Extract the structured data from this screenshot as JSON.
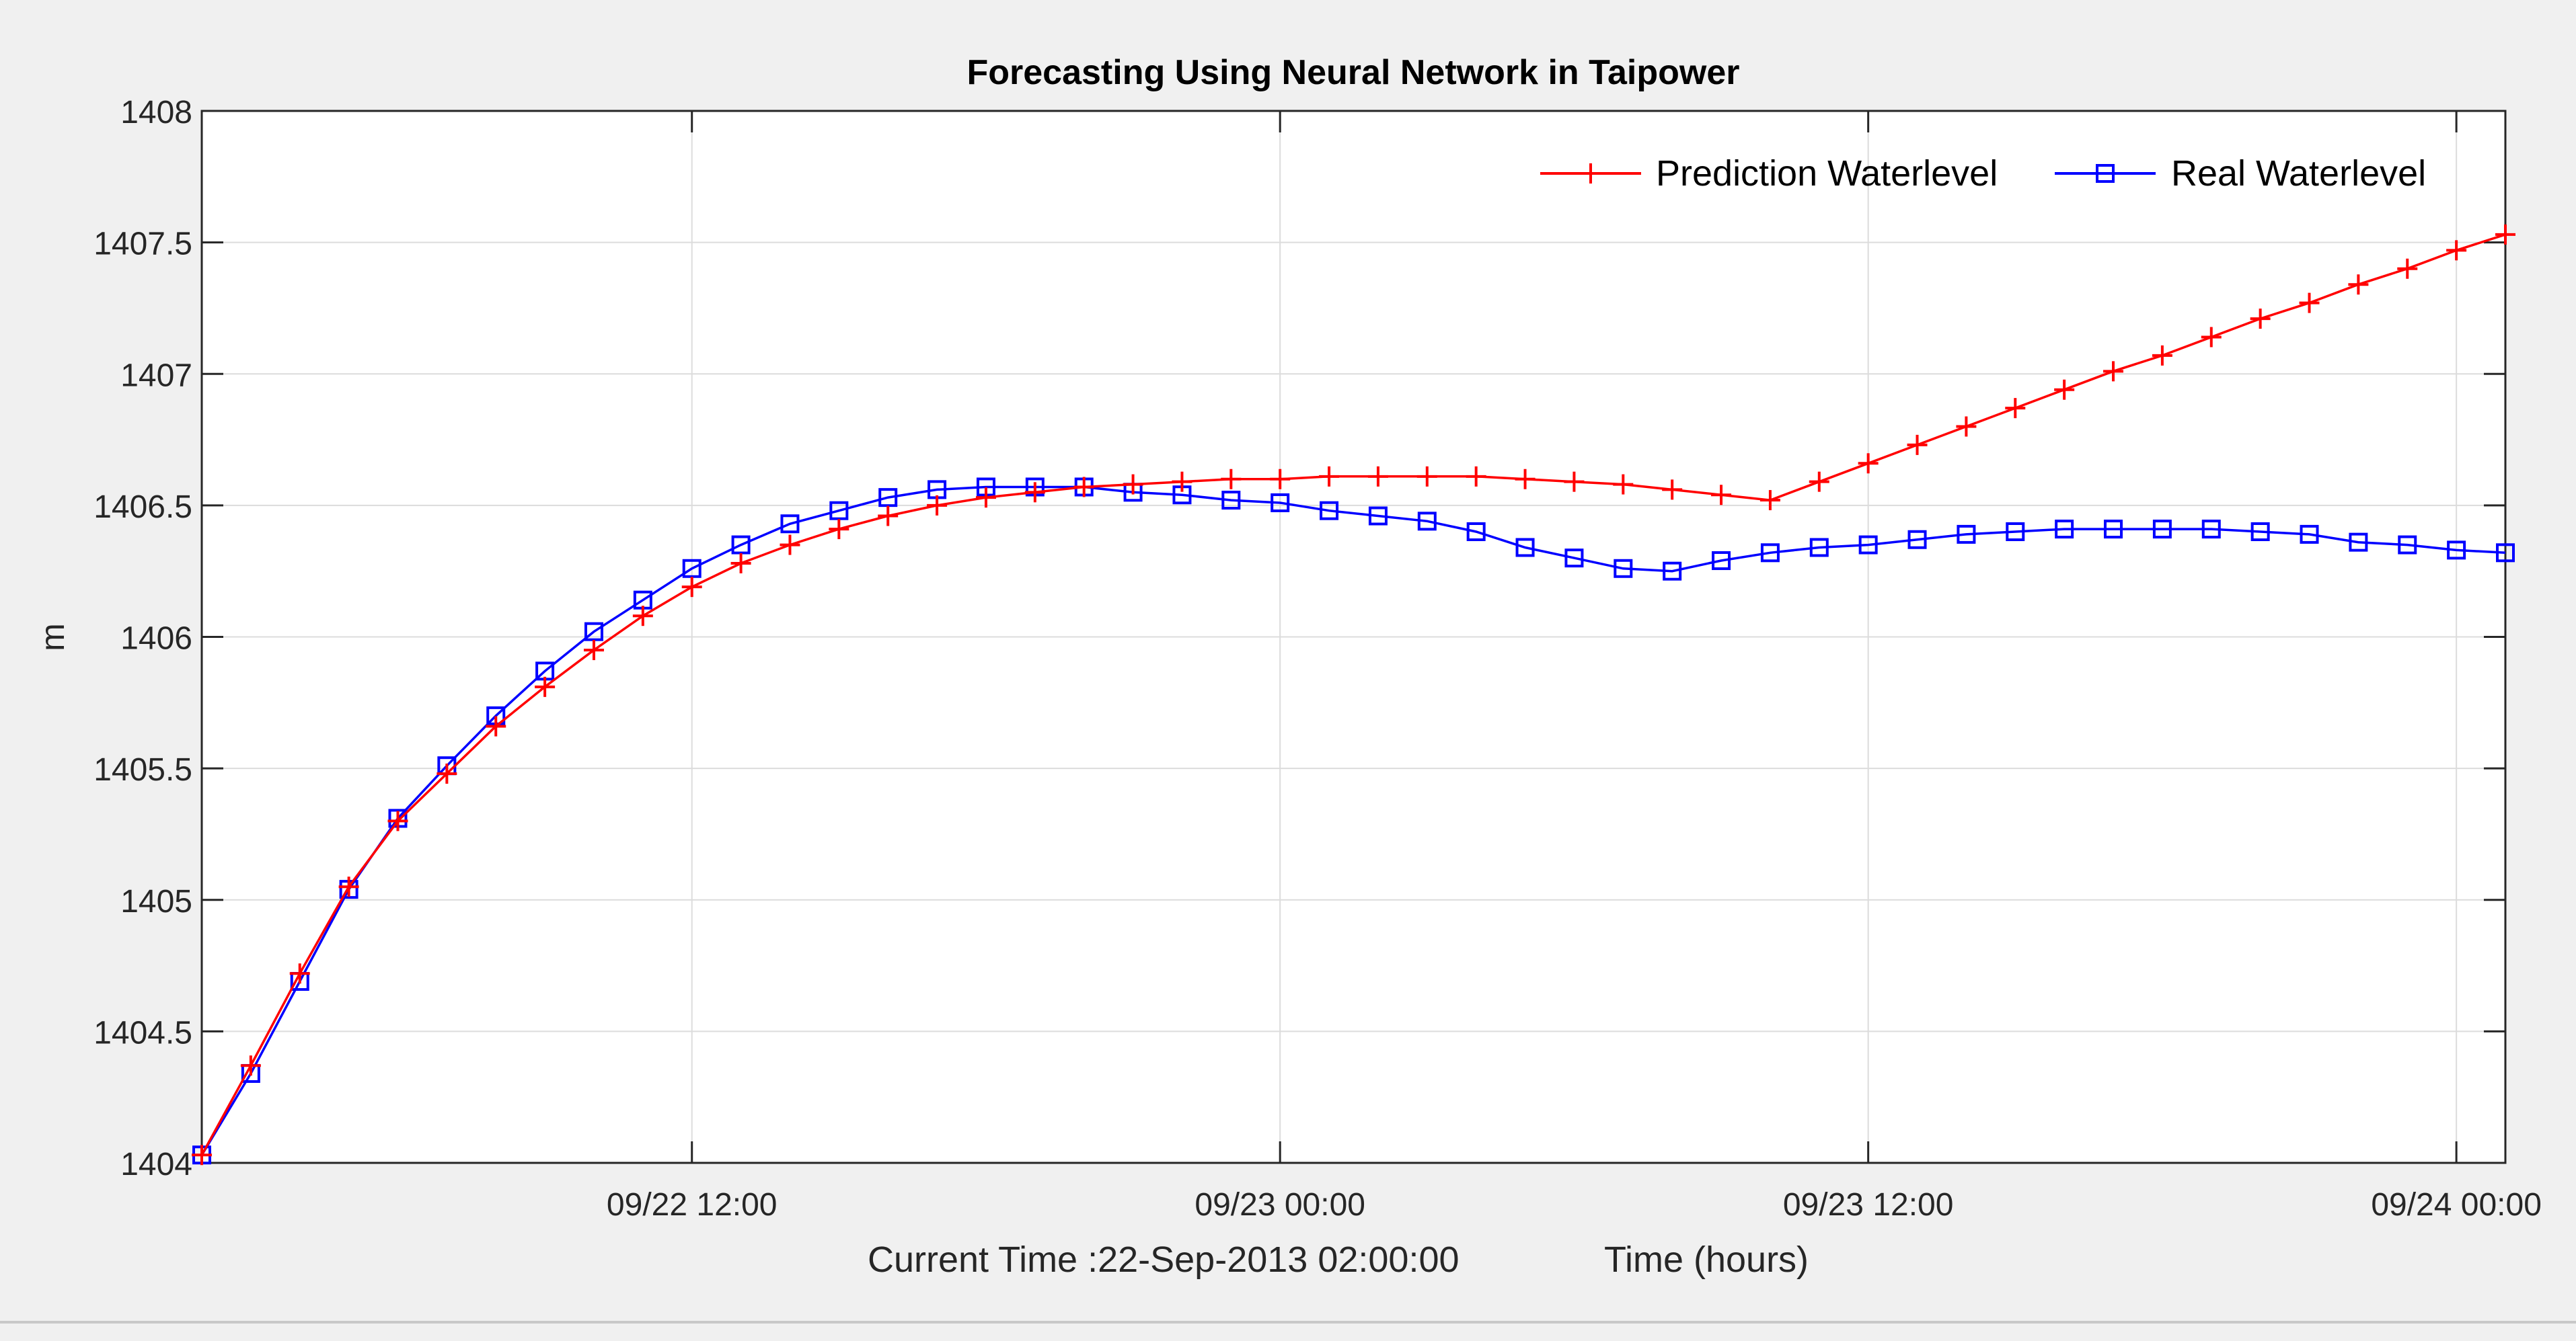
{
  "chart_data": {
    "type": "line",
    "title": "Forecasting Using Neural Network in Taipower",
    "xlabel": "Time (hours)",
    "ylabel": "m",
    "annotation": "Current Time :22-Sep-2013 02:00:00",
    "grid": true,
    "legend_position": "top-right",
    "x_hours_per_point": 1,
    "xlim_hours": [
      0,
      47
    ],
    "x_ticks": [
      {
        "hour": 10,
        "label": "09/22 12:00"
      },
      {
        "hour": 22,
        "label": "09/23 00:00"
      },
      {
        "hour": 34,
        "label": "09/23 12:00"
      },
      {
        "hour": 46,
        "label": "09/24 00:00"
      }
    ],
    "ylim": [
      1404,
      1408
    ],
    "y_ticks": [
      1404,
      1404.5,
      1405,
      1405.5,
      1406,
      1406.5,
      1407,
      1407.5,
      1408
    ],
    "y_tick_labels": [
      "1404",
      "1404.5",
      "1405",
      "1405.5",
      "1406",
      "1406.5",
      "1407",
      "1407.5",
      "1408"
    ],
    "series": [
      {
        "name": "Prediction Waterlevel",
        "color": "#ff0000",
        "marker": "plus",
        "values": [
          1404.03,
          1404.37,
          1404.72,
          1405.05,
          1405.3,
          1405.48,
          1405.66,
          1405.81,
          1405.95,
          1406.08,
          1406.19,
          1406.28,
          1406.35,
          1406.41,
          1406.46,
          1406.5,
          1406.53,
          1406.55,
          1406.57,
          1406.58,
          1406.59,
          1406.6,
          1406.6,
          1406.61,
          1406.61,
          1406.61,
          1406.61,
          1406.6,
          1406.59,
          1406.58,
          1406.56,
          1406.54,
          1406.52,
          1406.59,
          1406.66,
          1406.73,
          1406.8,
          1406.87,
          1406.94,
          1407.01,
          1407.07,
          1407.14,
          1407.21,
          1407.27,
          1407.34,
          1407.4,
          1407.47,
          1407.53
        ]
      },
      {
        "name": "Real Waterlevel",
        "color": "#0000ff",
        "marker": "square",
        "values": [
          1404.03,
          1404.34,
          1404.69,
          1405.04,
          1405.31,
          1405.51,
          1405.7,
          1405.87,
          1406.02,
          1406.14,
          1406.26,
          1406.35,
          1406.43,
          1406.48,
          1406.53,
          1406.56,
          1406.57,
          1406.57,
          1406.57,
          1406.55,
          1406.54,
          1406.52,
          1406.51,
          1406.48,
          1406.46,
          1406.44,
          1406.4,
          1406.34,
          1406.3,
          1406.26,
          1406.25,
          1406.29,
          1406.32,
          1406.34,
          1406.35,
          1406.37,
          1406.39,
          1406.4,
          1406.41,
          1406.41,
          1406.41,
          1406.41,
          1406.4,
          1406.39,
          1406.36,
          1406.35,
          1406.33,
          1406.32
        ]
      }
    ]
  }
}
